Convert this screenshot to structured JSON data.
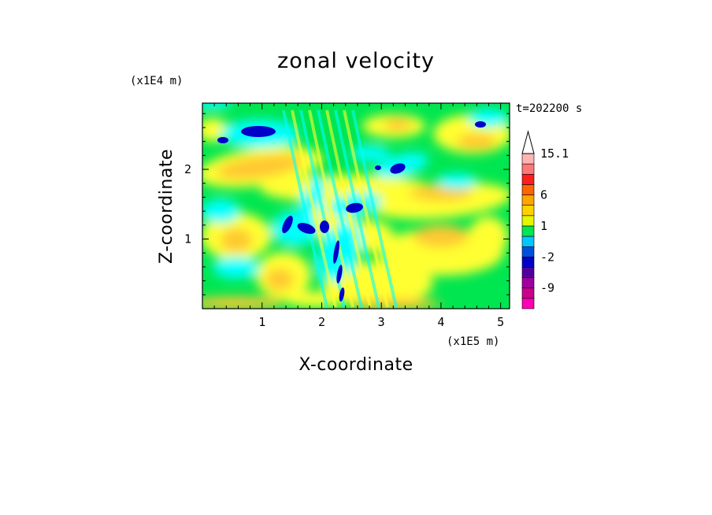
{
  "chart_data": {
    "type": "heatmap",
    "title": "zonal velocity",
    "xlabel": "X-coordinate",
    "ylabel": "Z-coordinate",
    "x_scale_label": "(x1E5 m)",
    "y_scale_label": "(x1E4 m)",
    "time_label": "t=202200 s",
    "xlim": [
      0,
      5.15
    ],
    "ylim": [
      0,
      2.95
    ],
    "x_ticks": [
      "1",
      "2",
      "3",
      "4",
      "5"
    ],
    "y_ticks": [
      "1",
      "2"
    ],
    "x_tick_values": [
      1,
      2,
      3,
      4,
      5
    ],
    "y_tick_values": [
      1,
      2
    ],
    "colorbar": {
      "labels": [
        "15.1",
        "6",
        "1",
        "-2",
        "-9"
      ],
      "levels": [
        -15,
        -12,
        -9,
        -6,
        -4,
        -2,
        -1,
        0,
        1,
        2,
        4,
        6,
        9,
        12,
        15.1
      ],
      "colors": [
        "#ff00b4",
        "#c8008c",
        "#a000a0",
        "#50009c",
        "#0000c8",
        "#0050dc",
        "#00c8ff",
        "#00e650",
        "#e6f500",
        "#ffd200",
        "#ffa500",
        "#ff6400",
        "#ff1e1e",
        "#ff7878",
        "#ffb4b4"
      ],
      "label_levels": [
        15.1,
        6,
        1,
        -2,
        -9
      ]
    }
  }
}
